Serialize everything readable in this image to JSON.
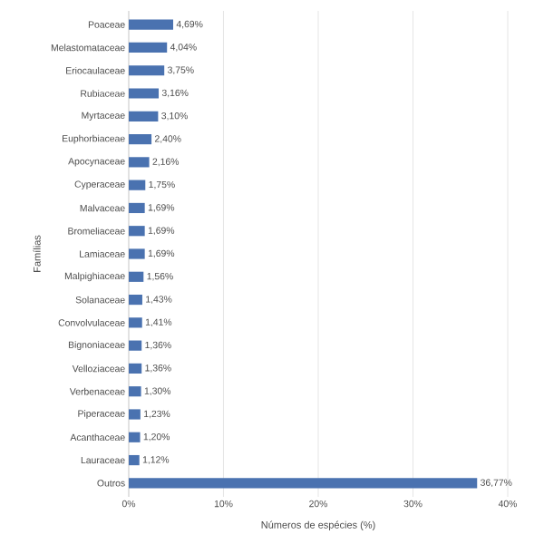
{
  "chart_data": {
    "type": "bar",
    "orientation": "horizontal",
    "xlabel": "Números de espécies (%)",
    "ylabel": "Famílias",
    "categories": [
      "Poaceae",
      "Melastomataceae",
      "Eriocaulaceae",
      "Rubiaceae",
      "Myrtaceae",
      "Euphorbiaceae",
      "Apocynaceae",
      "Cyperaceae",
      "Malvaceae",
      "Bromeliaceae",
      "Lamiaceae",
      "Malpighiaceae",
      "Solanaceae",
      "Convolvulaceae",
      "Bignoniaceae",
      "Velloziaceae",
      "Verbenaceae",
      "Piperaceae",
      "Acanthaceae",
      "Lauraceae",
      "Outros"
    ],
    "values": [
      4.69,
      4.04,
      3.75,
      3.16,
      3.1,
      2.4,
      2.16,
      1.75,
      1.69,
      1.69,
      1.69,
      1.56,
      1.43,
      1.41,
      1.36,
      1.36,
      1.3,
      1.23,
      1.2,
      1.12,
      36.77
    ],
    "value_labels": [
      "4,69%",
      "4,04%",
      "3,75%",
      "3,16%",
      "3,10%",
      "2,40%",
      "2,16%",
      "1,75%",
      "1,69%",
      "1,69%",
      "1,69%",
      "1,56%",
      "1,43%",
      "1,41%",
      "1,36%",
      "1,36%",
      "1,30%",
      "1,23%",
      "1,20%",
      "1,12%",
      "36,77%"
    ],
    "color": "#4a72b0",
    "xlim": [
      0,
      40
    ],
    "xticks": [
      {
        "value": 0,
        "label": "0%"
      },
      {
        "value": 10,
        "label": "10%"
      },
      {
        "value": 20,
        "label": "20%"
      },
      {
        "value": 30,
        "label": "30%"
      },
      {
        "value": 40,
        "label": "40%"
      }
    ],
    "grid": "x"
  }
}
